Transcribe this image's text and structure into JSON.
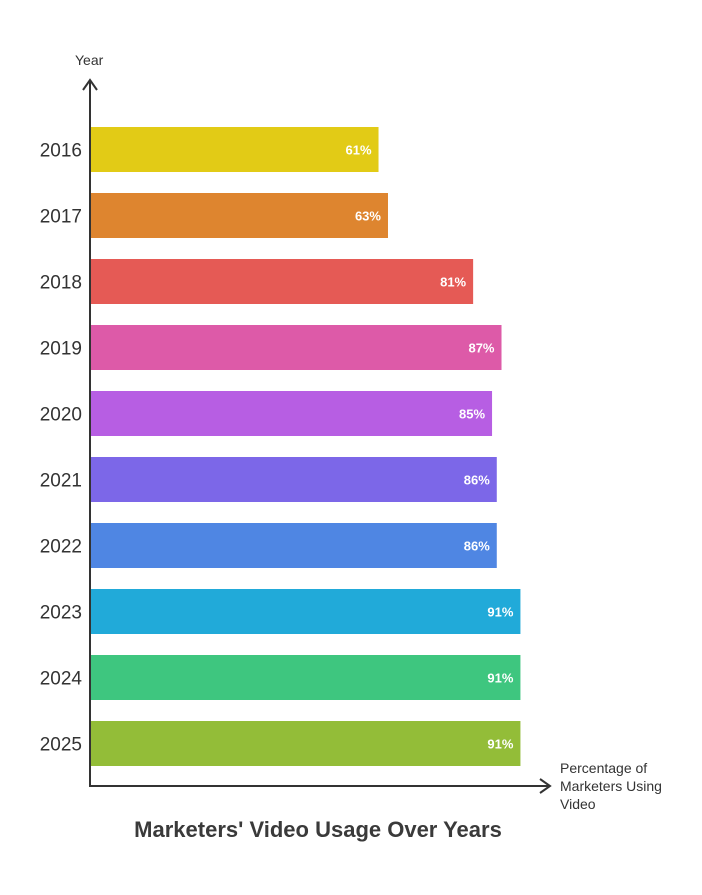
{
  "chart_data": {
    "type": "bar",
    "orientation": "horizontal",
    "title": "Marketers' Video Usage Over Years",
    "ylabel": "Year",
    "xlabel_lines": [
      "Percentage of",
      "Marketers Using",
      "Video"
    ],
    "categories": [
      "2016",
      "2017",
      "2018",
      "2019",
      "2020",
      "2021",
      "2022",
      "2023",
      "2024",
      "2025"
    ],
    "values": [
      61,
      63,
      81,
      87,
      85,
      86,
      86,
      91,
      91,
      91
    ],
    "value_labels": [
      "61%",
      "63%",
      "81%",
      "87%",
      "85%",
      "86%",
      "86%",
      "91%",
      "91%",
      "91%"
    ],
    "colors": [
      "#e2cb16",
      "#de852f",
      "#e55a55",
      "#dd5aa8",
      "#b75ee3",
      "#7c67e8",
      "#4f86e3",
      "#21aad9",
      "#3ec67f",
      "#93bd38"
    ],
    "xlim": [
      0,
      100
    ],
    "grid": false,
    "legend": false
  }
}
